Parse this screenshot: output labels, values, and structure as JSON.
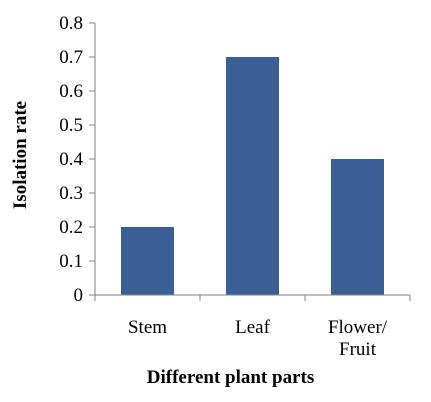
{
  "chart_data": {
    "type": "bar",
    "categories": [
      "Stem",
      "Leaf",
      "Flower/\nFruit"
    ],
    "values": [
      0.2,
      0.7,
      0.4
    ],
    "title": "",
    "xlabel": "Different plant parts",
    "ylabel": "Isolation rate",
    "ylim": [
      0,
      0.8
    ],
    "yticks": [
      "0",
      "0.1",
      "0.2",
      "0.3",
      "0.4",
      "0.5",
      "0.6",
      "0.7",
      "0.8"
    ],
    "grid": false,
    "legend": "none",
    "bar_color": "#3A5F94",
    "axis_color": "#808080"
  }
}
